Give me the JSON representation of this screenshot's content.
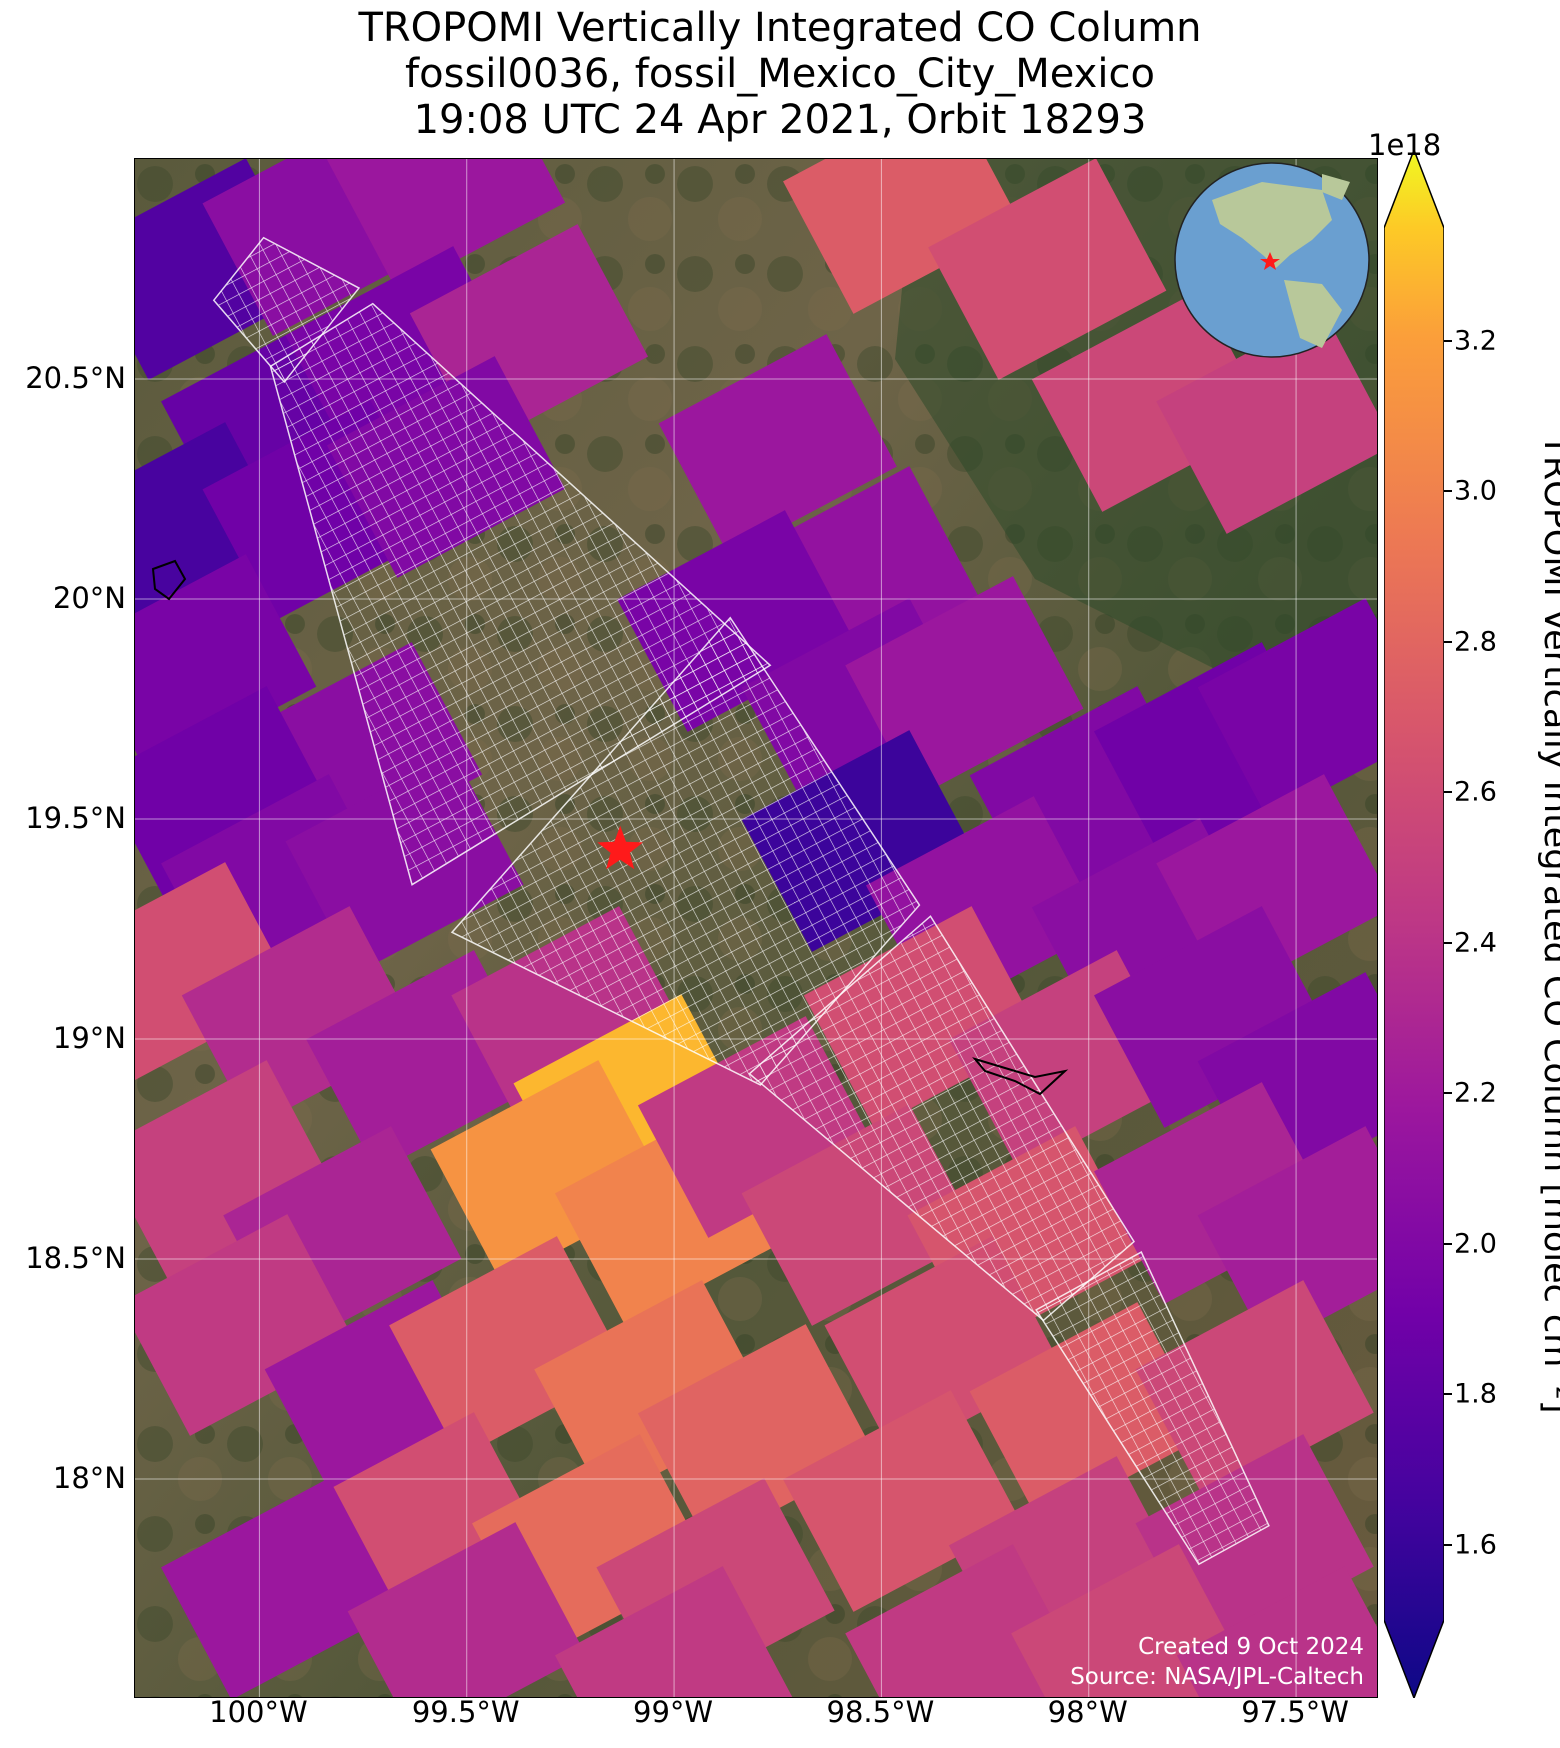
{
  "title": {
    "line1": "TROPOMI Vertically Integrated CO Column",
    "line2": "fossil0036, fossil_Mexico_City_Mexico",
    "line3": "19:08 UTC 24 Apr 2021, Orbit 18293"
  },
  "map": {
    "extent": {
      "lon_min": -100.3,
      "lon_max": -97.3,
      "lat_min": 17.5,
      "lat_max": 21.0
    },
    "gridlines": true,
    "basemap": "satellite imagery",
    "lat_ticks": [
      {
        "value": 20.5,
        "label": "20.5°N"
      },
      {
        "value": 20.0,
        "label": "20°N"
      },
      {
        "value": 19.5,
        "label": "19.5°N"
      },
      {
        "value": 19.0,
        "label": "19°N"
      },
      {
        "value": 18.5,
        "label": "18.5°N"
      },
      {
        "value": 18.0,
        "label": "18°N"
      }
    ],
    "lon_ticks": [
      {
        "value": -100.0,
        "label": "100°W"
      },
      {
        "value": -99.5,
        "label": "99.5°W"
      },
      {
        "value": -99.0,
        "label": "99°W"
      },
      {
        "value": -98.5,
        "label": "98.5°W"
      },
      {
        "value": -98.0,
        "label": "98°W"
      },
      {
        "value": -97.5,
        "label": "97.5°W"
      }
    ],
    "target_marker": {
      "icon": "star-icon",
      "lon": -99.13,
      "lat": 19.43,
      "color": "#ff1a1a"
    }
  },
  "colorbar": {
    "exponent": "1e18",
    "min": 1.5,
    "max": 3.35,
    "colormap": "plasma",
    "label": "TROPOMI Vertically Integrated CO Column [molec cm⁻²]",
    "ticks": [
      {
        "value": 1.6,
        "label": "1.6"
      },
      {
        "value": 1.8,
        "label": "1.8"
      },
      {
        "value": 2.0,
        "label": "2.0"
      },
      {
        "value": 2.2,
        "label": "2.2"
      },
      {
        "value": 2.4,
        "label": "2.4"
      },
      {
        "value": 2.6,
        "label": "2.6"
      },
      {
        "value": 2.8,
        "label": "2.8"
      },
      {
        "value": 3.0,
        "label": "3.0"
      },
      {
        "value": 3.2,
        "label": "3.2"
      }
    ]
  },
  "inset": {
    "icon": "globe-icon",
    "marker_icon": "star-icon",
    "ocean_color": "#6a9fd0",
    "land_color": "#b8c89a"
  },
  "footer": {
    "created": "Created 9 Oct 2024",
    "source": "Source: NASA/JPL-Caltech"
  },
  "chart_data": {
    "type": "heatmap",
    "value_unit": "molec cm⁻² (×1e18)",
    "scan_direction_deg": -28,
    "pixels": [
      {
        "lon": -100.15,
        "lat": 20.75,
        "value": 1.8
      },
      {
        "lon": -99.85,
        "lat": 20.85,
        "value": 2.1
      },
      {
        "lon": -99.55,
        "lat": 20.95,
        "value": 2.2
      },
      {
        "lon": -99.95,
        "lat": 20.4,
        "value": 1.9
      },
      {
        "lon": -99.65,
        "lat": 20.55,
        "value": 2.0
      },
      {
        "lon": -99.35,
        "lat": 20.6,
        "value": 2.3
      },
      {
        "lon": -100.2,
        "lat": 20.15,
        "value": 1.75
      },
      {
        "lon": -99.85,
        "lat": 20.2,
        "value": 1.95
      },
      {
        "lon": -99.55,
        "lat": 20.3,
        "value": 2.05
      },
      {
        "lon": -100.15,
        "lat": 19.85,
        "value": 2.0
      },
      {
        "lon": -99.75,
        "lat": 19.65,
        "value": 2.1
      },
      {
        "lon": -100.1,
        "lat": 19.55,
        "value": 1.95
      },
      {
        "lon": -99.95,
        "lat": 19.35,
        "value": 2.05
      },
      {
        "lon": -99.65,
        "lat": 19.4,
        "value": 2.1
      },
      {
        "lon": -100.2,
        "lat": 19.15,
        "value": 2.6
      },
      {
        "lon": -99.9,
        "lat": 19.05,
        "value": 2.35
      },
      {
        "lon": -99.6,
        "lat": 18.95,
        "value": 2.25
      },
      {
        "lon": -99.25,
        "lat": 19.05,
        "value": 2.4
      },
      {
        "lon": -99.1,
        "lat": 18.85,
        "value": 3.2
      },
      {
        "lon": -99.3,
        "lat": 18.7,
        "value": 3.05
      },
      {
        "lon": -99.0,
        "lat": 18.6,
        "value": 2.95
      },
      {
        "lon": -100.1,
        "lat": 18.7,
        "value": 2.5
      },
      {
        "lon": -99.8,
        "lat": 18.55,
        "value": 2.3
      },
      {
        "lon": -100.05,
        "lat": 18.35,
        "value": 2.45
      },
      {
        "lon": -99.7,
        "lat": 18.2,
        "value": 2.2
      },
      {
        "lon": -99.4,
        "lat": 18.3,
        "value": 2.7
      },
      {
        "lon": -99.05,
        "lat": 18.2,
        "value": 2.85
      },
      {
        "lon": -98.8,
        "lat": 18.1,
        "value": 2.75
      },
      {
        "lon": -99.6,
        "lat": 17.9,
        "value": 2.6
      },
      {
        "lon": -99.2,
        "lat": 17.85,
        "value": 2.8
      },
      {
        "lon": -98.9,
        "lat": 17.75,
        "value": 2.55
      },
      {
        "lon": -99.95,
        "lat": 17.75,
        "value": 2.2
      },
      {
        "lon": -99.5,
        "lat": 17.65,
        "value": 2.35
      },
      {
        "lon": -99.0,
        "lat": 17.55,
        "value": 2.45
      },
      {
        "lon": -98.45,
        "lat": 20.9,
        "value": 2.7
      },
      {
        "lon": -98.1,
        "lat": 20.75,
        "value": 2.6
      },
      {
        "lon": -97.85,
        "lat": 20.45,
        "value": 2.55
      },
      {
        "lon": -97.55,
        "lat": 20.4,
        "value": 2.5
      },
      {
        "lon": -98.75,
        "lat": 20.35,
        "value": 2.2
      },
      {
        "lon": -98.55,
        "lat": 20.05,
        "value": 2.15
      },
      {
        "lon": -98.85,
        "lat": 19.95,
        "value": 2.0
      },
      {
        "lon": -98.55,
        "lat": 19.75,
        "value": 2.05
      },
      {
        "lon": -98.3,
        "lat": 19.8,
        "value": 2.2
      },
      {
        "lon": -98.0,
        "lat": 19.55,
        "value": 2.05
      },
      {
        "lon": -97.7,
        "lat": 19.65,
        "value": 1.95
      },
      {
        "lon": -97.45,
        "lat": 19.75,
        "value": 2.0
      },
      {
        "lon": -98.55,
        "lat": 19.45,
        "value": 1.7
      },
      {
        "lon": -98.25,
        "lat": 19.3,
        "value": 2.15
      },
      {
        "lon": -97.85,
        "lat": 19.25,
        "value": 2.1
      },
      {
        "lon": -97.55,
        "lat": 19.35,
        "value": 2.2
      },
      {
        "lon": -98.4,
        "lat": 19.05,
        "value": 2.6
      },
      {
        "lon": -98.05,
        "lat": 18.95,
        "value": 2.5
      },
      {
        "lon": -97.7,
        "lat": 19.05,
        "value": 2.1
      },
      {
        "lon": -97.45,
        "lat": 18.9,
        "value": 2.05
      },
      {
        "lon": -98.8,
        "lat": 18.8,
        "value": 2.45
      },
      {
        "lon": -98.55,
        "lat": 18.6,
        "value": 2.55
      },
      {
        "lon": -98.15,
        "lat": 18.55,
        "value": 2.65
      },
      {
        "lon": -97.7,
        "lat": 18.65,
        "value": 2.3
      },
      {
        "lon": -97.45,
        "lat": 18.55,
        "value": 2.25
      },
      {
        "lon": -98.35,
        "lat": 18.3,
        "value": 2.6
      },
      {
        "lon": -98.0,
        "lat": 18.15,
        "value": 2.7
      },
      {
        "lon": -97.6,
        "lat": 18.2,
        "value": 2.55
      },
      {
        "lon": -98.45,
        "lat": 17.95,
        "value": 2.65
      },
      {
        "lon": -98.05,
        "lat": 17.8,
        "value": 2.5
      },
      {
        "lon": -97.6,
        "lat": 17.85,
        "value": 2.4
      },
      {
        "lon": -98.3,
        "lat": 17.6,
        "value": 2.45
      },
      {
        "lon": -97.9,
        "lat": 17.6,
        "value": 2.55
      },
      {
        "lon": -97.5,
        "lat": 17.55,
        "value": 2.4
      }
    ]
  }
}
